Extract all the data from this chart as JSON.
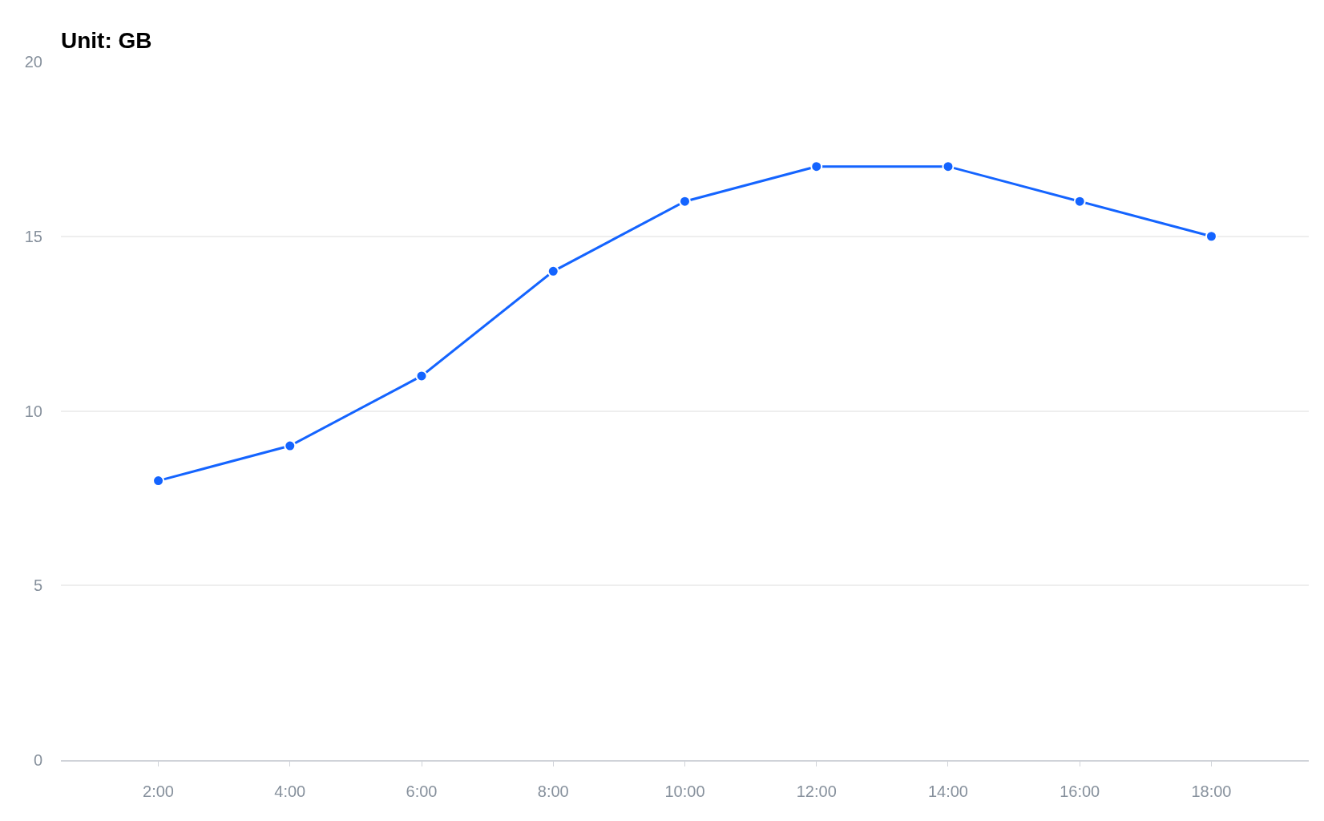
{
  "chart_data": {
    "type": "line",
    "title": "Unit: GB",
    "categories": [
      "2:00",
      "4:00",
      "6:00",
      "8:00",
      "10:00",
      "12:00",
      "14:00",
      "16:00",
      "18:00"
    ],
    "series": [
      {
        "color": "#1464ff",
        "values": [
          8,
          9,
          11,
          14,
          16,
          17,
          17,
          16,
          15
        ]
      }
    ],
    "ylim": [
      0,
      20
    ],
    "yticks": [
      0,
      5,
      10,
      15,
      20
    ],
    "grid": "y",
    "marker": "circle",
    "line_style": "solid"
  }
}
